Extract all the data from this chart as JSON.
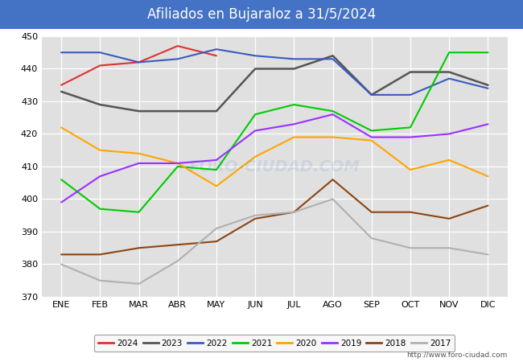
{
  "title": "Afiliados en Bujaraloz a 31/5/2024",
  "title_color": "#ffffff",
  "title_bg_color": "#4472c4",
  "xlabel": "",
  "ylabel": "",
  "xlim": [
    -0.5,
    11.5
  ],
  "ylim": [
    370,
    450
  ],
  "yticks": [
    370,
    380,
    390,
    400,
    410,
    420,
    430,
    440,
    450
  ],
  "xtick_labels": [
    "ENE",
    "FEB",
    "MAR",
    "ABR",
    "MAY",
    "JUN",
    "JUL",
    "AGO",
    "SEP",
    "OCT",
    "NOV",
    "DIC"
  ],
  "fig_bg_color": "#ffffff",
  "plot_bg_color": "#e0e0e0",
  "watermark": "FORO-CIUDAD.COM",
  "url": "http://www.foro-ciudad.com",
  "series": [
    {
      "label": "2024",
      "color": "#e03030",
      "linewidth": 1.5,
      "data": [
        435,
        441,
        442,
        447,
        444,
        null,
        null,
        null,
        null,
        null,
        null,
        null
      ]
    },
    {
      "label": "2023",
      "color": "#555555",
      "linewidth": 1.8,
      "data": [
        433,
        429,
        427,
        427,
        427,
        440,
        440,
        444,
        432,
        439,
        439,
        435
      ]
    },
    {
      "label": "2022",
      "color": "#3a5bbf",
      "linewidth": 1.5,
      "data": [
        445,
        445,
        442,
        443,
        446,
        444,
        443,
        443,
        432,
        432,
        437,
        434
      ]
    },
    {
      "label": "2021",
      "color": "#00cc00",
      "linewidth": 1.5,
      "data": [
        406,
        397,
        396,
        410,
        409,
        426,
        429,
        427,
        421,
        422,
        445,
        445
      ]
    },
    {
      "label": "2020",
      "color": "#ffa500",
      "linewidth": 1.5,
      "data": [
        422,
        415,
        414,
        411,
        404,
        413,
        419,
        419,
        418,
        409,
        412,
        407
      ]
    },
    {
      "label": "2019",
      "color": "#9b30ff",
      "linewidth": 1.5,
      "data": [
        399,
        407,
        411,
        411,
        412,
        421,
        423,
        426,
        419,
        419,
        420,
        423
      ]
    },
    {
      "label": "2018",
      "color": "#8b4513",
      "linewidth": 1.5,
      "data": [
        383,
        383,
        385,
        386,
        387,
        394,
        396,
        406,
        396,
        396,
        394,
        398
      ]
    },
    {
      "label": "2017",
      "color": "#b0b0b0",
      "linewidth": 1.5,
      "data": [
        380,
        375,
        374,
        381,
        391,
        395,
        396,
        400,
        388,
        385,
        385,
        383
      ]
    }
  ]
}
